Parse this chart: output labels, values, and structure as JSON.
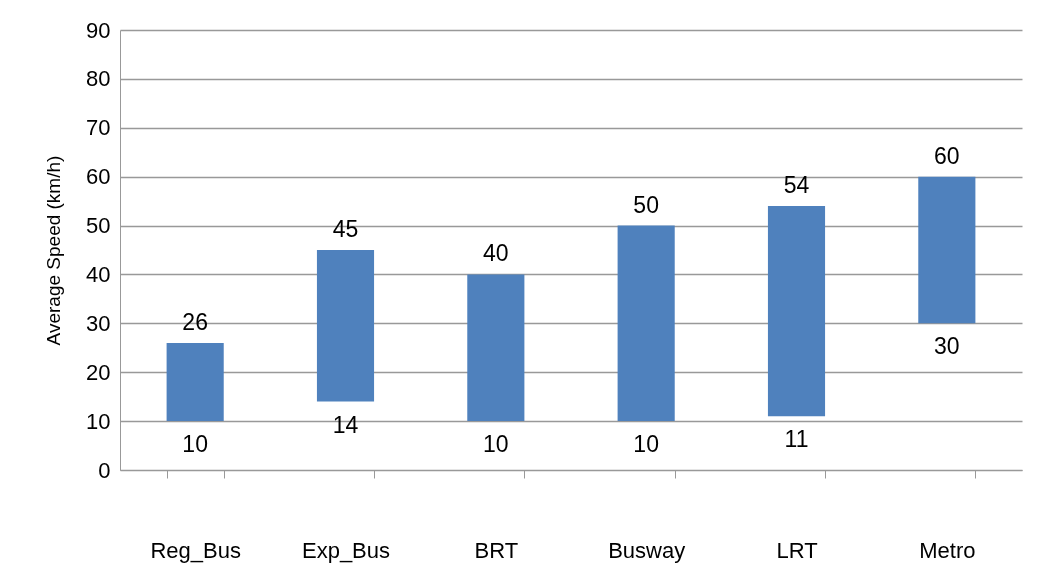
{
  "chart_data": {
    "type": "bar",
    "ylabel": "Average Speed (km/h)",
    "categories": [
      "Reg_Bus",
      "Exp_Bus",
      "BRT",
      "Busway",
      "LRT",
      "Metro"
    ],
    "values": [
      16,
      31,
      30,
      40,
      43,
      30
    ],
    "base": [
      10,
      14,
      10,
      10,
      11,
      30
    ],
    "color": "#4f81bd",
    "ylim": [
      0,
      90
    ],
    "yticks": [
      0,
      10,
      20,
      30,
      40,
      50,
      60,
      70,
      80,
      90
    ],
    "grid": "y",
    "annotations": [
      {
        "text": "26",
        "x": "Reg_Bus",
        "y": 26
      },
      {
        "text": "10",
        "x": "Reg_Bus",
        "y": 10
      },
      {
        "text": "45",
        "x": "Exp_Bus",
        "y": 45
      },
      {
        "text": "14",
        "x": "Exp_Bus",
        "y": 14
      },
      {
        "text": "40",
        "x": "BRT",
        "y": 40
      },
      {
        "text": "10",
        "x": "BRT",
        "y": 10
      },
      {
        "text": "50",
        "x": "Busway",
        "y": 50
      },
      {
        "text": "10",
        "x": "Busway",
        "y": 10
      },
      {
        "text": "54",
        "x": "LRT",
        "y": 54
      },
      {
        "text": "11",
        "x": "LRT",
        "y": 11
      },
      {
        "text": "60",
        "x": "Metro",
        "y": 60
      },
      {
        "text": "30",
        "x": "Metro",
        "y": 30
      }
    ]
  }
}
